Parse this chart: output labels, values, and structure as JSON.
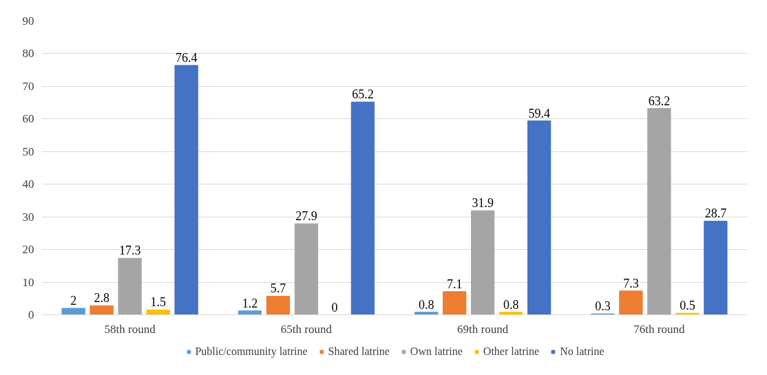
{
  "chart_data": {
    "type": "bar",
    "categories": [
      "58th round",
      "65th round",
      "69th round",
      "76th round"
    ],
    "series": [
      {
        "name": "Public/community latrine",
        "color": "#5b9bd5",
        "values": [
          2,
          1.2,
          0.8,
          0.3
        ]
      },
      {
        "name": "Shared latrine",
        "color": "#ed7d31",
        "values": [
          2.8,
          5.7,
          7.1,
          7.3
        ]
      },
      {
        "name": "Own latrine",
        "color": "#a5a5a5",
        "values": [
          17.3,
          27.9,
          31.9,
          63.2
        ]
      },
      {
        "name": "Other latrine",
        "color": "#ffc000",
        "values": [
          1.5,
          0,
          0.8,
          0.5
        ]
      },
      {
        "name": "No latrine",
        "color": "#4472c4",
        "values": [
          76.4,
          65.2,
          59.4,
          28.7
        ]
      }
    ],
    "ylim": [
      0,
      90
    ],
    "yticks": [
      0,
      10,
      20,
      30,
      40,
      50,
      60,
      70,
      80,
      90
    ],
    "grid": "y",
    "legend": "bottom",
    "data_labels": true
  }
}
